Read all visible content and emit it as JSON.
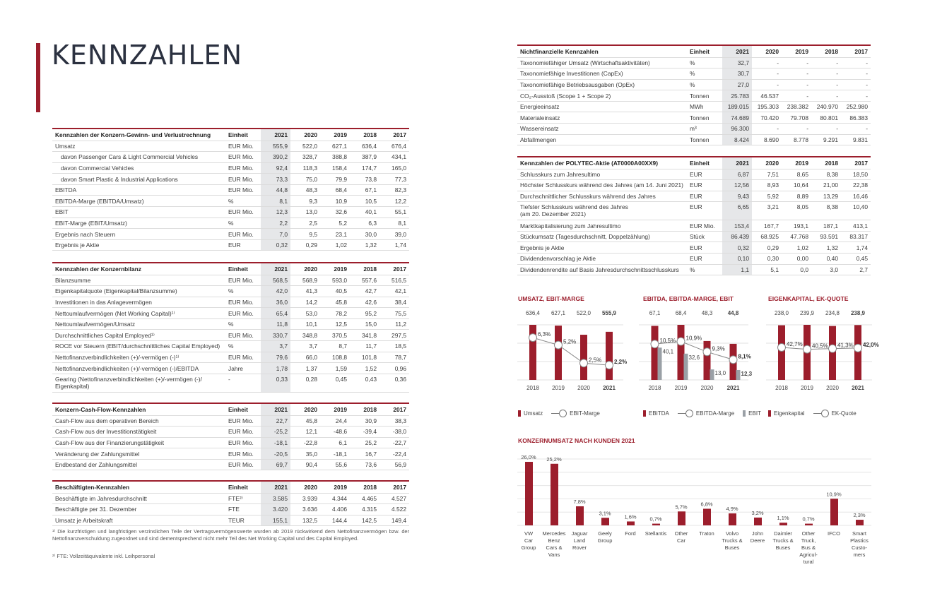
{
  "page": {
    "title": "KENNZAHLEN"
  },
  "years": [
    "2021",
    "2020",
    "2019",
    "2018",
    "2017"
  ],
  "tables": {
    "guv": {
      "title": "Kennzahlen der Konzern-Gewinn- und Verlustrechnung",
      "unit_header": "Einheit",
      "rows": [
        {
          "label": "Umsatz",
          "unit": "EUR Mio.",
          "values": [
            "555,9",
            "522,0",
            "627,1",
            "636,4",
            "676,4"
          ]
        },
        {
          "label": "davon Passenger Cars & Light Commercial Vehicles",
          "unit": "EUR Mio.",
          "values": [
            "390,2",
            "328,7",
            "388,8",
            "387,9",
            "434,1"
          ],
          "indent": true
        },
        {
          "label": "davon Commercial Vehicles",
          "unit": "EUR Mio.",
          "values": [
            "92,4",
            "118,3",
            "158,4",
            "174,7",
            "165,0"
          ],
          "indent": true
        },
        {
          "label": "davon Smart Plastic & Industrial Applications",
          "unit": "EUR Mio.",
          "values": [
            "73,3",
            "75,0",
            "79,9",
            "73,8",
            "77,3"
          ],
          "indent": true
        },
        {
          "label": "EBITDA",
          "unit": "EUR Mio.",
          "values": [
            "44,8",
            "48,3",
            "68,4",
            "67,1",
            "82,3"
          ]
        },
        {
          "label": "EBITDA-Marge (EBITDA/Umsatz)",
          "unit": "%",
          "values": [
            "8,1",
            "9,3",
            "10,9",
            "10,5",
            "12,2"
          ]
        },
        {
          "label": "EBIT",
          "unit": "EUR Mio.",
          "values": [
            "12,3",
            "13,0",
            "32,6",
            "40,1",
            "55,1"
          ]
        },
        {
          "label": "EBIT-Marge (EBIT/Umsatz)",
          "unit": "%",
          "values": [
            "2,2",
            "2,5",
            "5,2",
            "6,3",
            "8,1"
          ]
        },
        {
          "label": "Ergebnis nach Steuern",
          "unit": "EUR Mio.",
          "values": [
            "7,0",
            "9,5",
            "23,1",
            "30,0",
            "39,0"
          ]
        },
        {
          "label": "Ergebnis je Aktie",
          "unit": "EUR",
          "values": [
            "0,32",
            "0,29",
            "1,02",
            "1,32",
            "1,74"
          ]
        }
      ]
    },
    "bilanz": {
      "title": "Kennzahlen der Konzernbilanz",
      "unit_header": "Einheit",
      "rows": [
        {
          "label": "Bilanzsumme",
          "unit": "EUR Mio.",
          "values": [
            "568,5",
            "568,9",
            "593,0",
            "557,6",
            "516,5"
          ]
        },
        {
          "label": "Eigenkapitalquote (Eigenkapital/Bilanzsumme)",
          "unit": "%",
          "values": [
            "42,0",
            "41,3",
            "40,5",
            "42,7",
            "42,1"
          ]
        },
        {
          "label": "Investitionen in das Anlagevermögen",
          "unit": "EUR Mio.",
          "values": [
            "36,0",
            "14,2",
            "45,8",
            "42,6",
            "38,4"
          ]
        },
        {
          "label": "Nettoumlaufvermögen (Net Working Capital)¹⁾",
          "unit": "EUR Mio.",
          "values": [
            "65,4",
            "53,0",
            "78,2",
            "95,2",
            "75,5"
          ]
        },
        {
          "label": "Nettoumlaufvermögen/Umsatz",
          "unit": "%",
          "values": [
            "11,8",
            "10,1",
            "12,5",
            "15,0",
            "11,2"
          ]
        },
        {
          "label": "Durchschnittliches Capital Employed¹⁾",
          "unit": "EUR Mio.",
          "values": [
            "330,7",
            "348,8",
            "370,5",
            "341,8",
            "297,5"
          ]
        },
        {
          "label": "ROCE vor Steuern (EBIT/durchschnittliches Capital Employed)",
          "unit": "%",
          "values": [
            "3,7",
            "3,7",
            "8,7",
            "11,7",
            "18,5"
          ]
        },
        {
          "label": "Nettofinanzverbindlichkeiten (+)/-vermögen (-)¹⁾",
          "unit": "EUR Mio.",
          "values": [
            "79,6",
            "66,0",
            "108,8",
            "101,8",
            "78,7"
          ]
        },
        {
          "label": "Nettofinanzverbindlichkeiten (+)/-vermögen (-)/EBITDA",
          "unit": "Jahre",
          "values": [
            "1,78",
            "1,37",
            "1,59",
            "1,52",
            "0,96"
          ]
        },
        {
          "label": "Gearing (Nettofinanzverbindlichkeiten (+)/-vermögen (-)/",
          "label2": "Eigenkapital)",
          "unit": "-",
          "values": [
            "0,33",
            "0,28",
            "0,45",
            "0,43",
            "0,36"
          ],
          "tall": true
        }
      ]
    },
    "cashflow": {
      "title": "Konzern-Cash-Flow-Kennzahlen",
      "unit_header": "Einheit",
      "rows": [
        {
          "label": "Cash-Flow aus dem operativen Bereich",
          "unit": "EUR Mio.",
          "values": [
            "22,7",
            "45,8",
            "24,4",
            "30,9",
            "38,3"
          ]
        },
        {
          "label": "Cash-Flow aus der Investitionstätigkeit",
          "unit": "EUR Mio.",
          "values": [
            "-25,2",
            "12,1",
            "-48,6",
            "-39,4",
            "-38,0"
          ]
        },
        {
          "label": "Cash-Flow aus der Finanzierungstätigkeit",
          "unit": "EUR Mio.",
          "values": [
            "-18,1",
            "-22,8",
            "6,1",
            "25,2",
            "-22,7"
          ]
        },
        {
          "label": "Veränderung der Zahlungsmittel",
          "unit": "EUR Mio.",
          "values": [
            "-20,5",
            "35,0",
            "-18,1",
            "16,7",
            "-22,4"
          ]
        },
        {
          "label": "Endbestand der Zahlungsmittel",
          "unit": "EUR Mio.",
          "values": [
            "69,7",
            "90,4",
            "55,6",
            "73,6",
            "56,9"
          ]
        }
      ]
    },
    "beschaeftigte": {
      "title": "Beschäftigten-Kennzahlen",
      "unit_header": "Einheit",
      "rows": [
        {
          "label": "Beschäftigte im Jahresdurchschnitt",
          "unit": "FTE²⁾",
          "values": [
            "3.585",
            "3.939",
            "4.344",
            "4.465",
            "4.527"
          ]
        },
        {
          "label": "Beschäftigte per 31. Dezember",
          "unit": "FTE",
          "values": [
            "3.420",
            "3.636",
            "4.406",
            "4.315",
            "4.522"
          ]
        },
        {
          "label": "Umsatz je Arbeitskraft",
          "unit": "TEUR",
          "values": [
            "155,1",
            "132,5",
            "144,4",
            "142,5",
            "149,4"
          ]
        }
      ]
    },
    "nichtfinanziell": {
      "title": "Nichtfinanzielle Kennzahlen",
      "unit_header": "Einheit",
      "rows": [
        {
          "label": "Taxonomiefähiger Umsatz (Wirtschaftsaktivitäten)",
          "unit": "%",
          "values": [
            "32,7",
            "-",
            "-",
            "-",
            "-"
          ]
        },
        {
          "label": "Taxonomiefähige Investitionen (CapEx)",
          "unit": "%",
          "values": [
            "30,7",
            "-",
            "-",
            "-",
            "-"
          ]
        },
        {
          "label": "Taxonomiefähige Betriebsausgaben (OpEx)",
          "unit": "%",
          "values": [
            "27,0",
            "-",
            "-",
            "-",
            "-"
          ]
        },
        {
          "label": "CO₂-Ausstoß (Scope 1 + Scope 2)",
          "unit": "Tonnen",
          "values": [
            "25.783",
            "46.537",
            "-",
            "-",
            "-"
          ]
        },
        {
          "label": "Energieeinsatz",
          "unit": "MWh",
          "values": [
            "189.015",
            "195.303",
            "238.382",
            "240.970",
            "252.980"
          ]
        },
        {
          "label": "Materialeinsatz",
          "unit": "Tonnen",
          "values": [
            "74.689",
            "70.420",
            "79.708",
            "80.801",
            "86.383"
          ]
        },
        {
          "label": "Wassereinsatz",
          "unit": "m³",
          "values": [
            "96.300",
            "-",
            "-",
            "-",
            "-"
          ]
        },
        {
          "label": "Abfallmengen",
          "unit": "Tonnen",
          "values": [
            "8.424",
            "8.690",
            "8.778",
            "9.291",
            "9.831"
          ]
        }
      ]
    },
    "aktie": {
      "title": "Kennzahlen der POLYTEC-Aktie (AT0000A00XX9)",
      "unit_header": "Einheit",
      "rows": [
        {
          "label": "Schlusskurs zum Jahresultimo",
          "unit": "EUR",
          "values": [
            "6,87",
            "7,51",
            "8,65",
            "8,38",
            "18,50"
          ]
        },
        {
          "label": "Höchster Schlusskurs während des Jahres (am 14. Juni 2021)",
          "unit": "EUR",
          "values": [
            "12,56",
            "8,93",
            "10,64",
            "21,00",
            "22,38"
          ]
        },
        {
          "label": "Durchschnittlicher Schlusskurs während des Jahres",
          "unit": "EUR",
          "values": [
            "9,43",
            "5,92",
            "8,89",
            "13,29",
            "16,46"
          ]
        },
        {
          "label": "Tiefster Schlusskurs während des Jahres",
          "label2": "(am 20. Dezember 2021)",
          "unit": "EUR",
          "values": [
            "6,65",
            "3,21",
            "8,05",
            "8,38",
            "10,40"
          ],
          "tall": true
        },
        {
          "label": "Marktkapitalisierung zum Jahresultimo",
          "unit": "EUR Mio.",
          "values": [
            "153,4",
            "167,7",
            "193,1",
            "187,1",
            "413,1"
          ]
        },
        {
          "label": "Stückumsatz (Tagesdurchschnitt, Doppelzählung)",
          "unit": "Stück",
          "values": [
            "86.439",
            "68.925",
            "47.768",
            "93.591",
            "83.317"
          ]
        },
        {
          "label": "Ergebnis je Aktie",
          "unit": "EUR",
          "values": [
            "0,32",
            "0,29",
            "1,02",
            "1,32",
            "1,74"
          ]
        },
        {
          "label": "Dividendenvorschlag je Aktie",
          "unit": "EUR",
          "values": [
            "0,10",
            "0,30",
            "0,00",
            "0,40",
            "0,45"
          ]
        },
        {
          "label": "Dividendenrendite auf Basis Jahresdurchschnittsschlusskurs",
          "unit": "%",
          "values": [
            "1,1",
            "5,1",
            "0,0",
            "3,0",
            "2,7"
          ]
        }
      ]
    }
  },
  "footnotes": [
    "¹⁾ Die kurzfristigen und langfristigen verzinslichen Teile der Vertragsvermögenswerte wurden ab 2019 rückwirkend dem Nettofinanzvermögen bzw. der Nettofinanzverschuldung zugeordnet und sind dementsprechend nicht mehr Teil des Net Working Capital und des Capital Employed.",
    "²⁾ FTE: Vollzeitäquivalente inkl. Leihpersonal"
  ],
  "colors": {
    "accent": "#9c1e2c",
    "highlight_col": "#e6e7e9",
    "grey_bar": "#9aa0a6",
    "title_text": "#2b3140"
  },
  "chart_data": [
    {
      "type": "bar",
      "title": "UMSATZ, EBIT-MARGE",
      "categories": [
        "2018",
        "2019",
        "2020",
        "2021"
      ],
      "series": [
        {
          "name": "Umsatz",
          "type": "bar",
          "values": [
            636.4,
            627.1,
            522.0,
            555.9
          ],
          "labels": [
            "636,4",
            "627,1",
            "522,0",
            "555,9"
          ]
        },
        {
          "name": "EBIT-Marge",
          "type": "line",
          "values": [
            6.3,
            5.2,
            2.5,
            2.2
          ],
          "labels": [
            "6,3%",
            "5,2%",
            "2,5%",
            "2,2%"
          ]
        }
      ],
      "legend": [
        "Umsatz",
        "EBIT-Marge"
      ],
      "legend_position": "bottom",
      "grid": true
    },
    {
      "type": "bar",
      "title": "EBITDA, EBITDA-MARGE, EBIT",
      "categories": [
        "2018",
        "2019",
        "2020",
        "2021"
      ],
      "series": [
        {
          "name": "EBITDA",
          "type": "bar",
          "values": [
            67.1,
            68.4,
            48.3,
            44.8
          ],
          "labels": [
            "67,1",
            "68,4",
            "48,3",
            "44,8"
          ]
        },
        {
          "name": "EBITDA-Marge",
          "type": "line",
          "values": [
            10.5,
            10.9,
            9.3,
            8.1
          ],
          "labels": [
            "10,5%",
            "10,9%",
            "9,3%",
            "8,1%"
          ]
        },
        {
          "name": "EBIT",
          "type": "bar",
          "values": [
            40.1,
            32.6,
            13.0,
            12.3
          ],
          "labels": [
            "40,1",
            "32,6",
            "13,0",
            "12,3"
          ]
        }
      ],
      "legend": [
        "EBITDA",
        "EBITDA-Marge",
        "EBIT"
      ],
      "legend_position": "bottom",
      "grid": true
    },
    {
      "type": "bar",
      "title": "EIGENKAPITAL, EK-QUOTE",
      "categories": [
        "2018",
        "2019",
        "2020",
        "2021"
      ],
      "series": [
        {
          "name": "Eigenkapital",
          "type": "bar",
          "values": [
            238.0,
            239.9,
            234.8,
            238.9
          ],
          "labels": [
            "238,0",
            "239,9",
            "234,8",
            "238,9"
          ]
        },
        {
          "name": "EK-Quote",
          "type": "line",
          "values": [
            42.7,
            40.5,
            41.3,
            42.0
          ],
          "labels": [
            "42,7%",
            "40,5%",
            "41,3%",
            "42,0%"
          ]
        }
      ],
      "legend": [
        "Eigenkapital",
        "EK-Quote"
      ],
      "legend_position": "bottom",
      "grid": true
    },
    {
      "type": "bar",
      "title": "KONZERNUMSATZ NACH KUNDEN 2021",
      "categories": [
        "VW Car Group",
        "Mercedes Benz Cars & Vans",
        "Jaguar Land Rover",
        "Geely Group",
        "Ford",
        "Stellantis",
        "Other Car",
        "Traton",
        "Volvo Trucks & Buses",
        "John Deere",
        "Daimler Trucks & Buses",
        "Other Truck, Bus & Agricultural",
        "IFCO",
        "Smart Plastics Customers"
      ],
      "category_lines": [
        [
          "VW",
          "Car",
          "Group"
        ],
        [
          "Mercedes",
          "Benz",
          "Cars &",
          "Vans"
        ],
        [
          "Jaguar",
          "Land",
          "Rover"
        ],
        [
          "Geely",
          "Group"
        ],
        [
          "Ford"
        ],
        [
          "Stellantis"
        ],
        [
          "Other",
          "Car"
        ],
        [
          "Traton"
        ],
        [
          "Volvo",
          "Trucks &",
          "Buses"
        ],
        [
          "John",
          "Deere"
        ],
        [
          "Daimler",
          "Trucks &",
          "Buses"
        ],
        [
          "Other",
          "Truck,",
          "Bus &",
          "Agricul-",
          "tural"
        ],
        [
          "IFCO"
        ],
        [
          "Smart",
          "Plastics",
          "Custo-",
          "mers"
        ]
      ],
      "values": [
        26.0,
        25.2,
        7.8,
        3.1,
        1.6,
        0.7,
        5.7,
        6.8,
        4.9,
        3.2,
        1.1,
        0.7,
        10.9,
        2.3
      ],
      "labels": [
        "26,0%",
        "25,2%",
        "7,8%",
        "3,1%",
        "1,6%",
        "0,7%",
        "5,7%",
        "6,8%",
        "4,9%",
        "3,2%",
        "1,1%",
        "0,7%",
        "10,9%",
        "2,3%"
      ],
      "ylabel": "%",
      "grid": true
    }
  ]
}
